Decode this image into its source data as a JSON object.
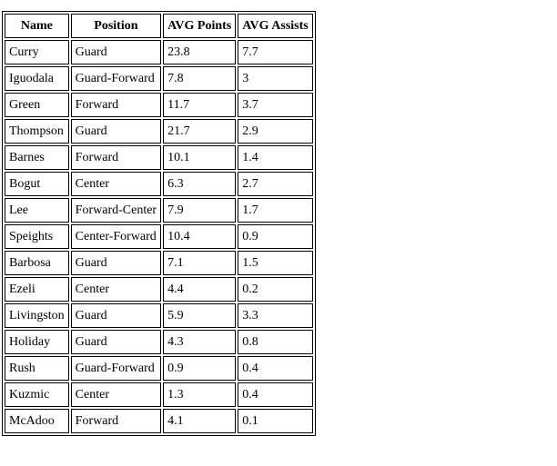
{
  "table": {
    "headers": [
      "Name",
      "Position",
      "AVG Points",
      "AVG Assists"
    ],
    "rows": [
      [
        "Curry",
        "Guard",
        "23.8",
        "7.7"
      ],
      [
        "Iguodala",
        "Guard-Forward",
        "7.8",
        "3"
      ],
      [
        "Green",
        "Forward",
        "11.7",
        "3.7"
      ],
      [
        "Thompson",
        "Guard",
        "21.7",
        "2.9"
      ],
      [
        "Barnes",
        "Forward",
        "10.1",
        "1.4"
      ],
      [
        "Bogut",
        "Center",
        "6.3",
        "2.7"
      ],
      [
        "Lee",
        "Forward-Center",
        "7.9",
        "1.7"
      ],
      [
        "Speights",
        "Center-Forward",
        "10.4",
        "0.9"
      ],
      [
        "Barbosa",
        "Guard",
        "7.1",
        "1.5"
      ],
      [
        "Ezeli",
        "Center",
        "4.4",
        "0.2"
      ],
      [
        "Livingston",
        "Guard",
        "5.9",
        "3.3"
      ],
      [
        "Holiday",
        "Guard",
        "4.3",
        "0.8"
      ],
      [
        "Rush",
        "Guard-Forward",
        "0.9",
        "0.4"
      ],
      [
        "Kuzmic",
        "Center",
        "1.3",
        "0.4"
      ],
      [
        "McAdoo",
        "Forward",
        "4.1",
        "0.1"
      ]
    ]
  }
}
